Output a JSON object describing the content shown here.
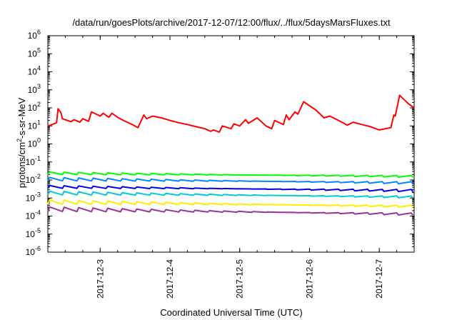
{
  "chart_data": {
    "type": "line",
    "title": "/data/run/goesPlots/archive/2017-12-07/12:00/flux/../flux/5daysMarsFluxes.txt",
    "xlabel": "Coordinated Universal Time (UTC)",
    "ylabel": "protons/cm²-s-sr-MeV",
    "yscale": "log",
    "ylim": [
      1e-06,
      1000000.0
    ],
    "xlim": [
      "2017-12-02 06:00",
      "2017-12-07 12:00"
    ],
    "y_ticks": [
      {
        "value": 1e-06,
        "base": "10",
        "exp": "-6"
      },
      {
        "value": 1e-05,
        "base": "10",
        "exp": "-5"
      },
      {
        "value": 0.0001,
        "base": "10",
        "exp": "-4"
      },
      {
        "value": 0.001,
        "base": "10",
        "exp": "-3"
      },
      {
        "value": 0.01,
        "base": "10",
        "exp": "-2"
      },
      {
        "value": 0.1,
        "base": "10",
        "exp": "-1"
      },
      {
        "value": 1,
        "base": "10",
        "exp": "0"
      },
      {
        "value": 10,
        "base": "10",
        "exp": "1"
      },
      {
        "value": 100,
        "base": "10",
        "exp": "2"
      },
      {
        "value": 1000,
        "base": "10",
        "exp": "3"
      },
      {
        "value": 10000,
        "base": "10",
        "exp": "4"
      },
      {
        "value": 100000,
        "base": "10",
        "exp": "5"
      },
      {
        "value": 1000000,
        "base": "10",
        "exp": "6"
      }
    ],
    "x_ticks": [
      "2017-12-3",
      "2017-12-4",
      "2017-12-5",
      "2017-12-6",
      "2017-12-7"
    ],
    "grid": false,
    "legend": "none",
    "series": [
      {
        "color": "#ff0000",
        "x": [
          "2017-12-02 06:00",
          "2017-12-02 07:30",
          "2017-12-02 09:00",
          "2017-12-02 09:30",
          "2017-12-02 10:30",
          "2017-12-02 11:00",
          "2017-12-02 14:00",
          "2017-12-02 15:00",
          "2017-12-02 17:00",
          "2017-12-02 18:00",
          "2017-12-02 20:00",
          "2017-12-02 21:00",
          "2017-12-03 00:00",
          "2017-12-03 01:00",
          "2017-12-03 03:00",
          "2017-12-03 04:00",
          "2017-12-03 06:00",
          "2017-12-03 08:00",
          "2017-12-03 11:00",
          "2017-12-03 13:00",
          "2017-12-03 15:00",
          "2017-12-03 16:00",
          "2017-12-03 18:00",
          "2017-12-03 21:00",
          "2017-12-04 00:00",
          "2017-12-04 03:00",
          "2017-12-04 06:00",
          "2017-12-04 09:00",
          "2017-12-04 12:00",
          "2017-12-04 14:00",
          "2017-12-04 15:00",
          "2017-12-04 17:00",
          "2017-12-04 18:00",
          "2017-12-04 21:00",
          "2017-12-04 22:00",
          "2017-12-05 00:00",
          "2017-12-05 02:00",
          "2017-12-05 03:00",
          "2017-12-05 06:00",
          "2017-12-05 09:00",
          "2017-12-05 11:00",
          "2017-12-05 12:00",
          "2017-12-05 15:00",
          "2017-12-05 16:00",
          "2017-12-05 17:00",
          "2017-12-05 19:00",
          "2017-12-05 20:00",
          "2017-12-05 22:00",
          "2017-12-06 00:00",
          "2017-12-06 02:00",
          "2017-12-06 04:00",
          "2017-12-06 05:00",
          "2017-12-06 07:00",
          "2017-12-06 10:00",
          "2017-12-06 13:00",
          "2017-12-06 15:00",
          "2017-12-06 18:00",
          "2017-12-06 21:00",
          "2017-12-07 00:00",
          "2017-12-07 04:00",
          "2017-12-07 05:00",
          "2017-12-07 05:30",
          "2017-12-07 07:00",
          "2017-12-07 08:00",
          "2017-12-07 10:00",
          "2017-12-07 12:00"
        ],
        "values": [
          10,
          12,
          15,
          90,
          55,
          25,
          17,
          22,
          16,
          25,
          18,
          60,
          35,
          50,
          30,
          50,
          30,
          20,
          12,
          8,
          40,
          25,
          35,
          28,
          20,
          15,
          12,
          9,
          7,
          5,
          6,
          4.5,
          10,
          7,
          13,
          10,
          22,
          14,
          28,
          10,
          7,
          20,
          12,
          40,
          22,
          60,
          45,
          220,
          130,
          80,
          40,
          28,
          35,
          20,
          11,
          16,
          12,
          9,
          6,
          8,
          40,
          35,
          500,
          350,
          170,
          100
        ]
      },
      {
        "color": "#00ff00",
        "x": [
          "2017-12-02 06:00",
          "2017-12-07 12:00"
        ],
        "values": [
          0.02,
          0.018
        ],
        "pattern": "sawtooth",
        "amplitude": [
          0.028,
          0.014
        ]
      },
      {
        "color": "#0088ff",
        "x": [
          "2017-12-02 06:00",
          "2017-12-07 12:00"
        ],
        "values": [
          0.009,
          0.008
        ],
        "pattern": "sawtooth",
        "amplitude": [
          0.014,
          0.006
        ]
      },
      {
        "color": "#0000ee",
        "x": [
          "2017-12-02 06:00",
          "2017-12-07 12:00"
        ],
        "values": [
          0.0035,
          0.003
        ],
        "pattern": "sawtooth",
        "amplitude": [
          0.005,
          0.0022
        ]
      },
      {
        "color": "#00cccc",
        "x": [
          "2017-12-02 06:00",
          "2017-12-07 12:00"
        ],
        "values": [
          0.0015,
          0.0013
        ],
        "pattern": "sawtooth",
        "amplitude": [
          0.0024,
          0.001
        ]
      },
      {
        "color": "#ffee00",
        "x": [
          "2017-12-02 06:00",
          "2017-12-07 12:00"
        ],
        "values": [
          0.00045,
          0.0004
        ],
        "pattern": "sawtooth",
        "amplitude": [
          0.0008,
          0.0003
        ]
      },
      {
        "color": "#993399",
        "x": [
          "2017-12-02 06:00",
          "2017-12-07 12:00"
        ],
        "values": [
          0.00018,
          0.00015
        ],
        "pattern": "sawtooth",
        "amplitude": [
          0.00032,
          0.00011
        ]
      }
    ]
  }
}
